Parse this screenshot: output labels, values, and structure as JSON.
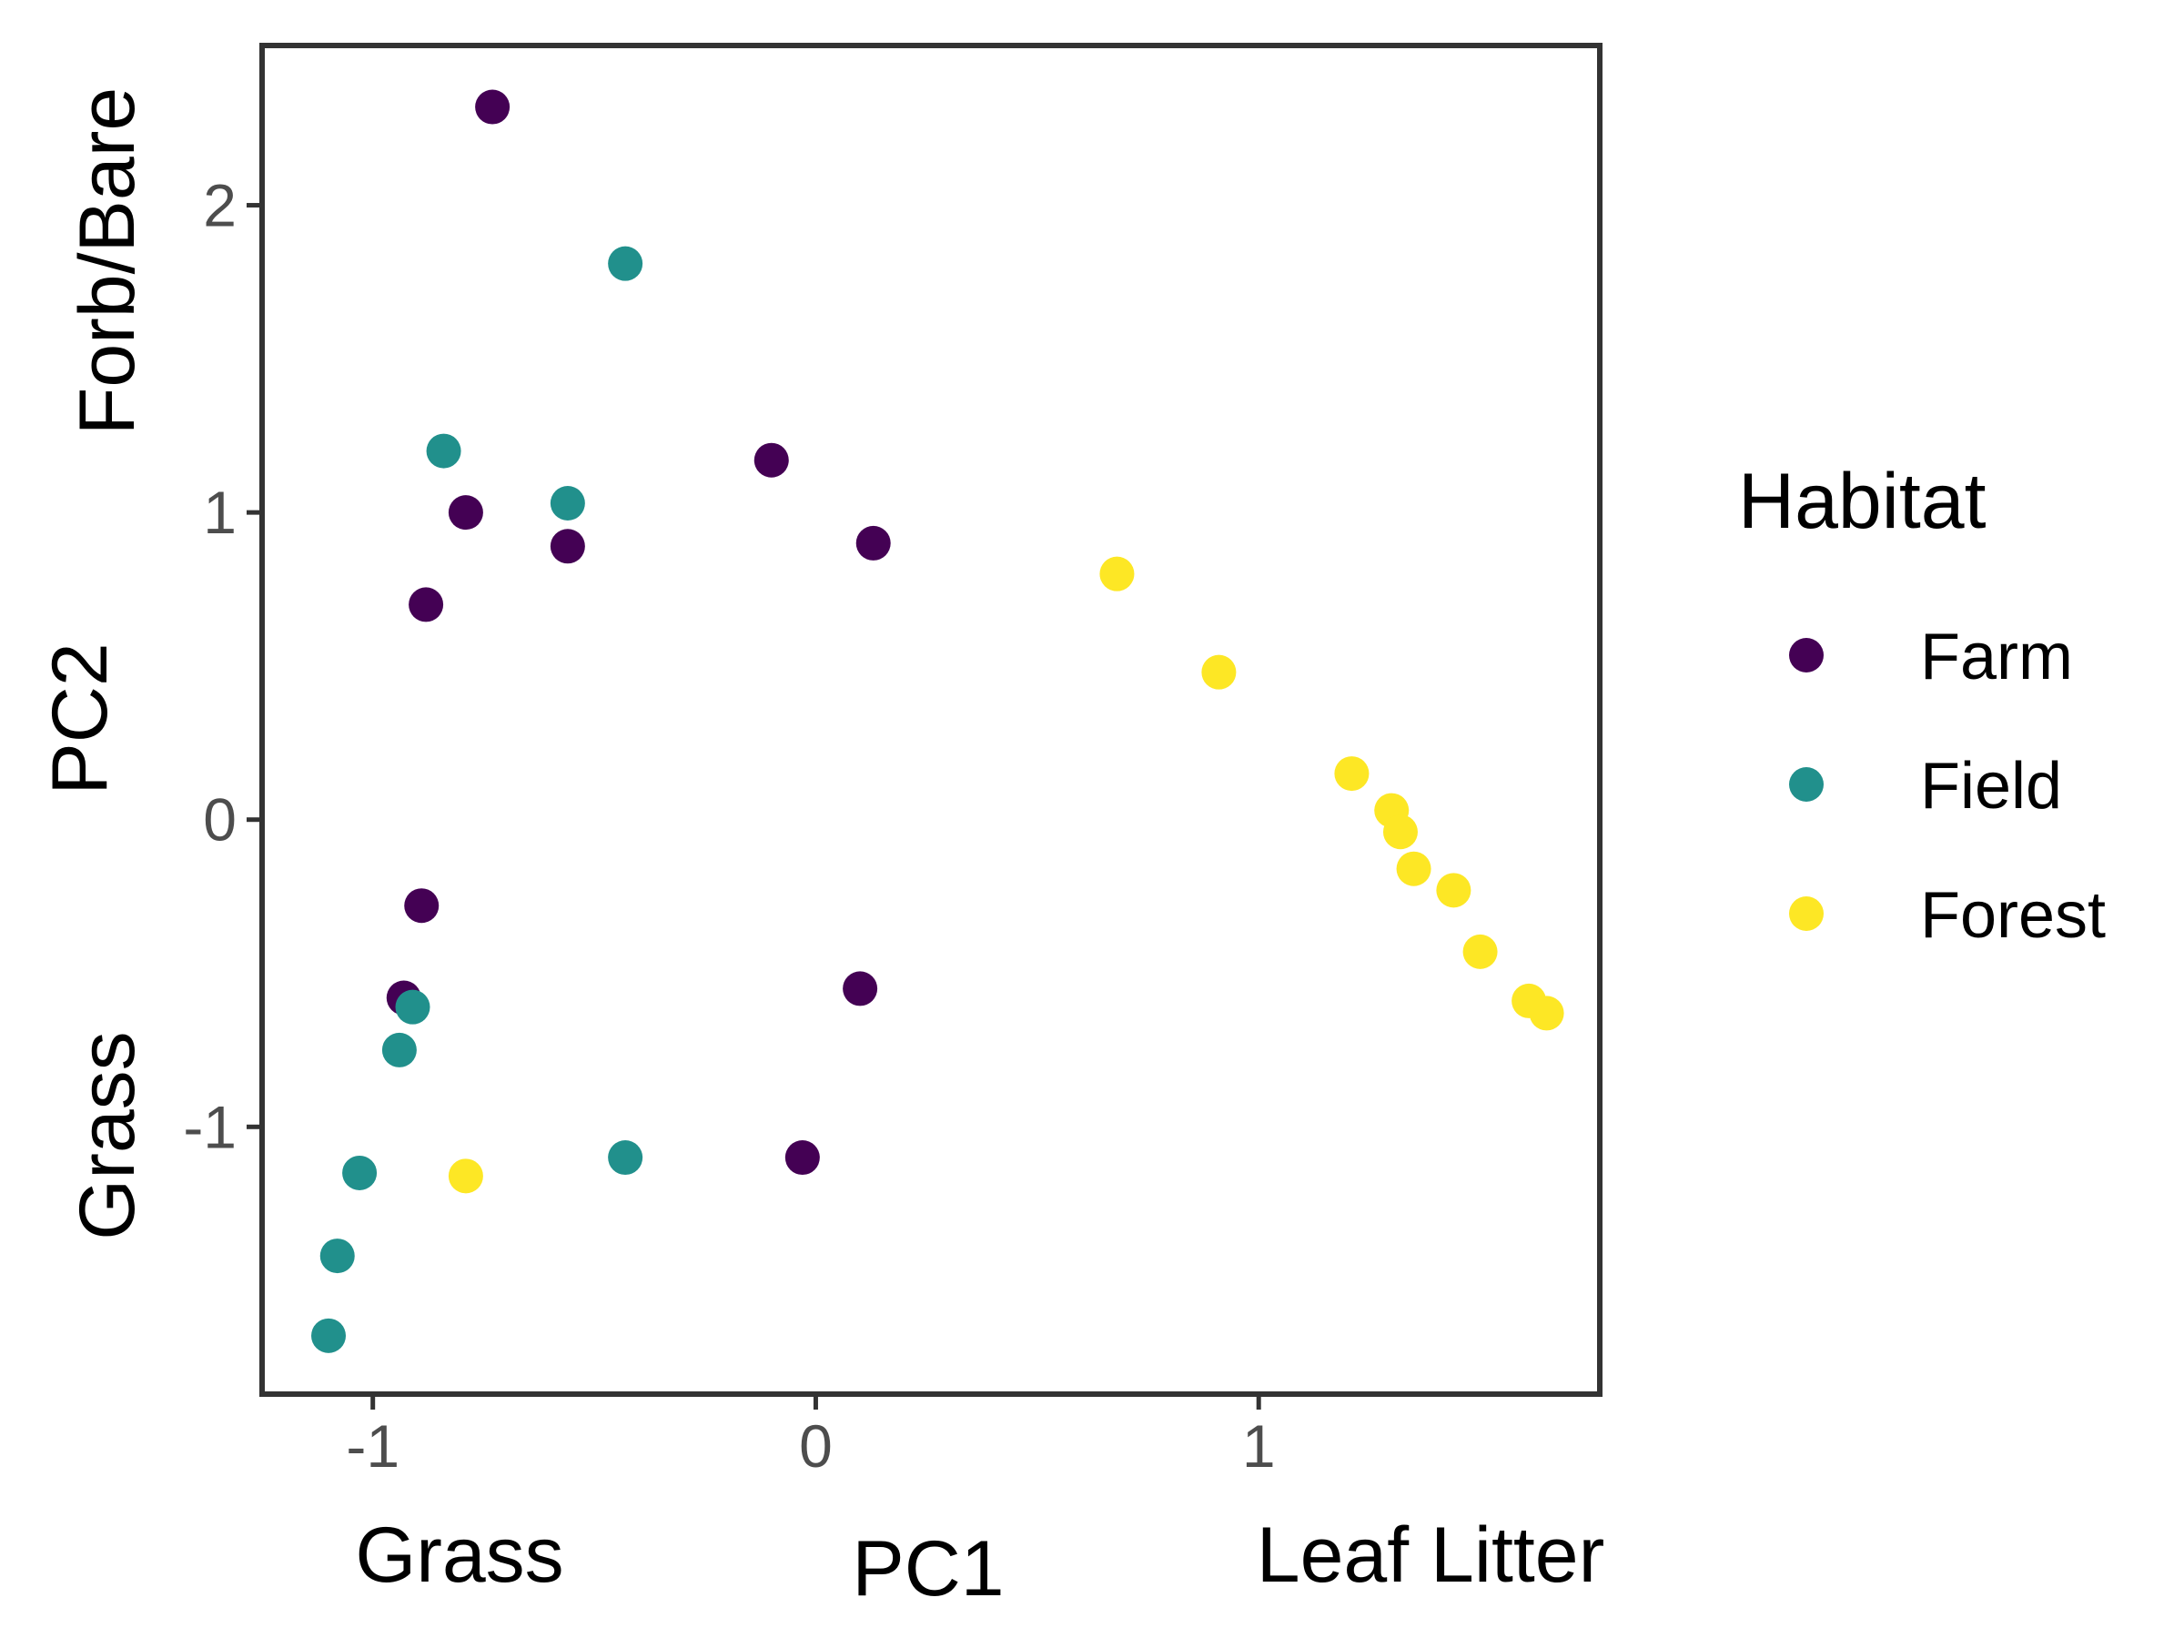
{
  "chart_data": {
    "type": "scatter",
    "title": "",
    "xlabel": "PC1",
    "ylabel": "PC2",
    "x_end_labels": {
      "low": "Grass",
      "high": "Leaf Litter"
    },
    "y_end_labels": {
      "low": "Grass",
      "high": "Forb/Bare"
    },
    "xlim": [
      -1.25,
      1.77
    ],
    "ylim": [
      -1.87,
      2.52
    ],
    "x_ticks": [
      {
        "value": -1,
        "label": "-1"
      },
      {
        "value": 0,
        "label": "0"
      },
      {
        "value": 1,
        "label": "1"
      }
    ],
    "y_ticks": [
      {
        "value": -1,
        "label": "-1"
      },
      {
        "value": 0,
        "label": "0"
      },
      {
        "value": 1,
        "label": "1"
      },
      {
        "value": 2,
        "label": "2"
      }
    ],
    "grid": false,
    "legend": {
      "title": "Habitat",
      "position": "right"
    },
    "series": [
      {
        "name": "Farm",
        "color": "#440154",
        "points": [
          {
            "x": -0.73,
            "y": 2.32
          },
          {
            "x": -0.1,
            "y": 1.17
          },
          {
            "x": -0.79,
            "y": 1.0
          },
          {
            "x": -0.56,
            "y": 0.89
          },
          {
            "x": 0.13,
            "y": 0.9
          },
          {
            "x": -0.88,
            "y": 0.7
          },
          {
            "x": -0.89,
            "y": -0.28
          },
          {
            "x": -0.93,
            "y": -0.58
          },
          {
            "x": 0.1,
            "y": -0.55
          },
          {
            "x": -0.03,
            "y": -1.1
          }
        ]
      },
      {
        "name": "Field",
        "color": "#21908C",
        "points": [
          {
            "x": -0.43,
            "y": 1.81
          },
          {
            "x": -0.84,
            "y": 1.2
          },
          {
            "x": -0.56,
            "y": 1.03
          },
          {
            "x": -0.91,
            "y": -0.61
          },
          {
            "x": -0.94,
            "y": -0.75
          },
          {
            "x": -1.03,
            "y": -1.15
          },
          {
            "x": -0.43,
            "y": -1.1
          },
          {
            "x": -1.08,
            "y": -1.42
          },
          {
            "x": -1.1,
            "y": -1.68
          }
        ]
      },
      {
        "name": "Forest",
        "color": "#FDE725",
        "points": [
          {
            "x": 0.68,
            "y": 0.8
          },
          {
            "x": 0.91,
            "y": 0.48
          },
          {
            "x": 1.21,
            "y": 0.15
          },
          {
            "x": 1.3,
            "y": 0.03
          },
          {
            "x": 1.32,
            "y": -0.04
          },
          {
            "x": 1.35,
            "y": -0.16
          },
          {
            "x": 1.44,
            "y": -0.23
          },
          {
            "x": 1.5,
            "y": -0.43
          },
          {
            "x": 1.61,
            "y": -0.59
          },
          {
            "x": 1.65,
            "y": -0.63
          },
          {
            "x": -0.79,
            "y": -1.16
          }
        ]
      }
    ]
  }
}
